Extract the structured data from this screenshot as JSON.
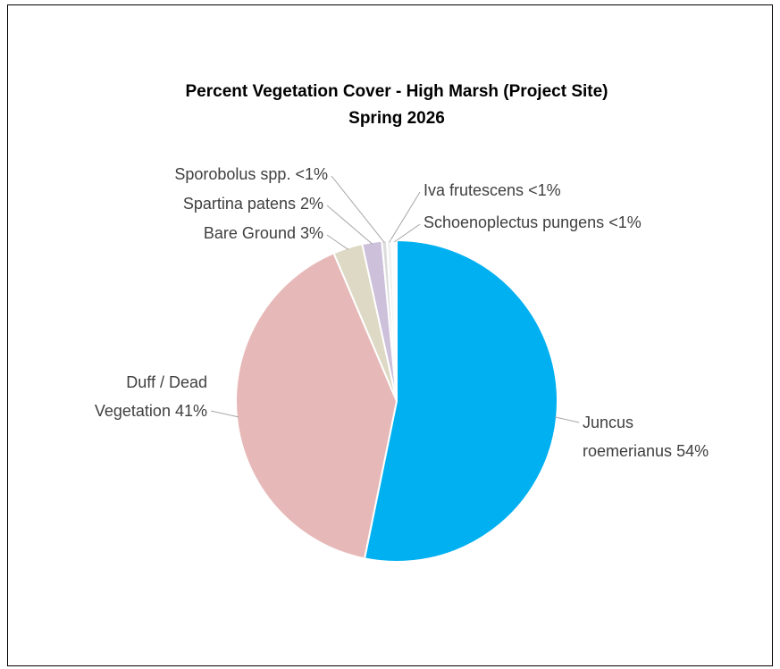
{
  "chart_data": {
    "type": "pie",
    "title": "Percent Vegetation Cover - High Marsh (Project Site)",
    "subtitle": "Spring 2026",
    "categories": [
      "Juncus roemerianus",
      "Duff / Dead Vegetation",
      "Bare Ground",
      "Spartina patens",
      "Sporobolus spp.",
      "Iva frutescens",
      "Schoenoplectus  pungens"
    ],
    "values": [
      54,
      41,
      3,
      2,
      0.5,
      0.5,
      0.5
    ],
    "value_labels": [
      "54%",
      "41%",
      "3%",
      "2%",
      "<1%",
      "<1%",
      "<1%"
    ],
    "colors": [
      "#00b0f0",
      "#e6b9b8",
      "#ddd9c4",
      "#ccc0da",
      "#dcdcdc",
      "#f2f2f2",
      "#ffffff"
    ]
  }
}
